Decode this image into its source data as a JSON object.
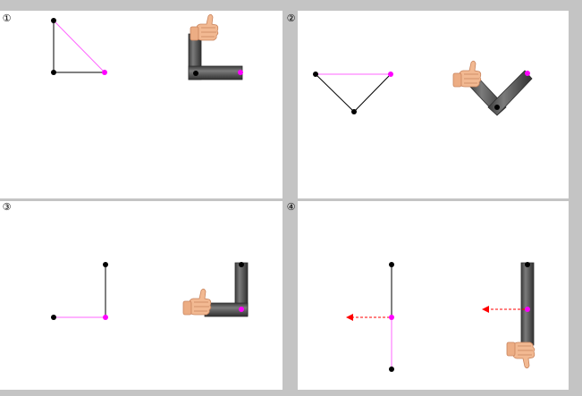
{
  "panels": [
    {
      "label": "①"
    },
    {
      "label": "②"
    },
    {
      "label": "③"
    },
    {
      "label": "④"
    }
  ],
  "colors": {
    "background": "#c4c4c4",
    "panel": "#ffffff",
    "joint": "#000000",
    "end_effector": "#ff00ff",
    "link_line": "#000000",
    "highlight_line": "#ff66ff",
    "arm_segment": "#555555",
    "arm_segment_edge": "#2f2f2f",
    "force_arrow": "#ff0000",
    "hand_skin": "#f2b992",
    "hand_shadow": "#c9845d"
  },
  "icons": {
    "hand": "thumbs-up-hand-icon",
    "arrow": "dashed-force-arrow-icon"
  }
}
